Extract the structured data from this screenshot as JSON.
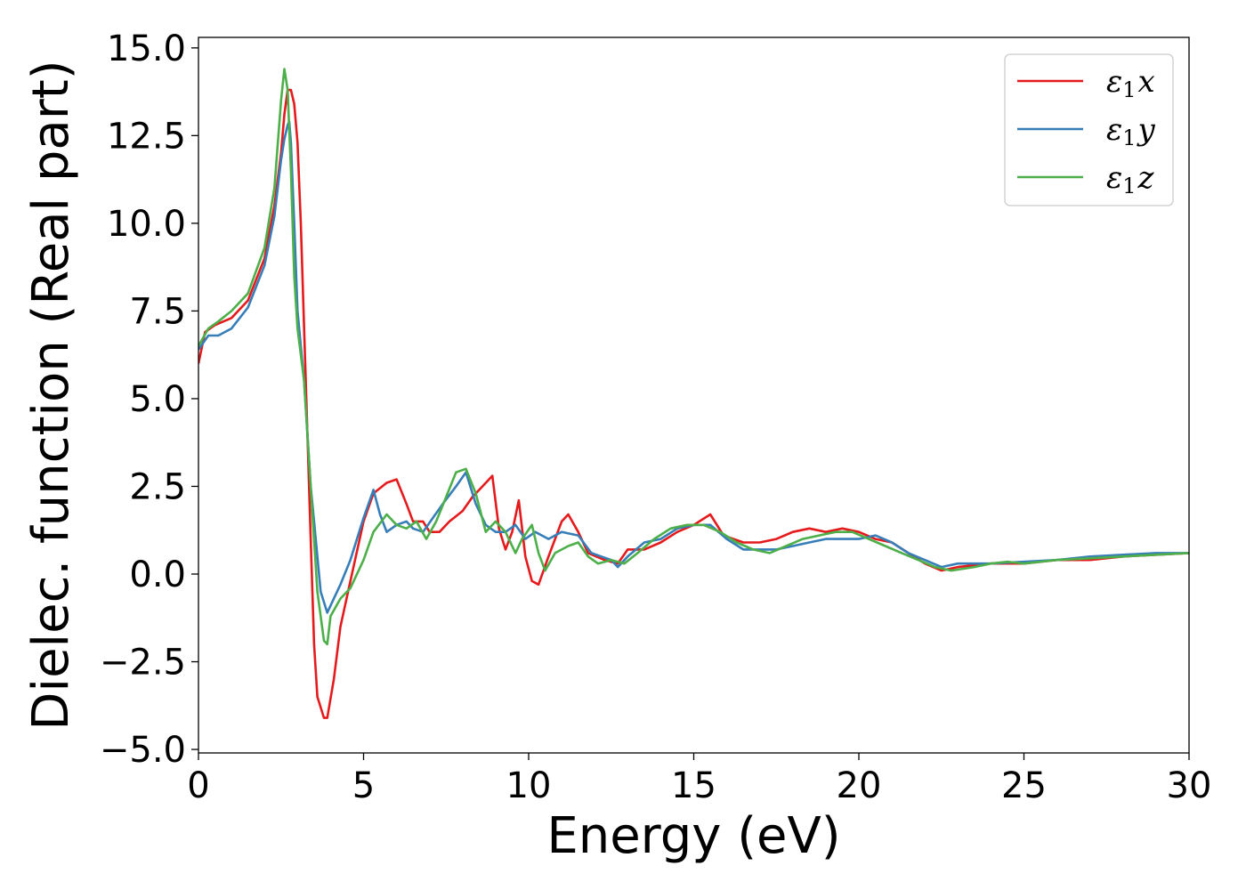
{
  "chart_data": {
    "type": "line",
    "xlabel": "Energy (eV)",
    "ylabel": "Dielec. function (Real part)",
    "xlim": [
      0,
      30
    ],
    "ylim": [
      -5.1,
      15.3
    ],
    "xticks": [
      0,
      5,
      10,
      15,
      20,
      25,
      30
    ],
    "xtick_labels": [
      "0",
      "5",
      "10",
      "15",
      "20",
      "25",
      "30"
    ],
    "yticks": [
      -5.0,
      -2.5,
      0.0,
      2.5,
      5.0,
      7.5,
      10.0,
      12.5,
      15.0
    ],
    "ytick_labels": [
      "−5.0",
      "−2.5",
      "0.0",
      "2.5",
      "5.0",
      "7.5",
      "10.0",
      "12.5",
      "15.0"
    ],
    "grid": false,
    "legend_position": "top-right",
    "series": [
      {
        "name": "ε₁x",
        "legend_symbol": "ε",
        "legend_sub": "1",
        "legend_var": "x",
        "color": "#e41a1c",
        "points": [
          [
            0,
            6.0
          ],
          [
            0.2,
            6.9
          ],
          [
            0.5,
            7.1
          ],
          [
            1.0,
            7.3
          ],
          [
            1.5,
            7.8
          ],
          [
            2.0,
            9.0
          ],
          [
            2.3,
            10.5
          ],
          [
            2.5,
            12.0
          ],
          [
            2.6,
            13.1
          ],
          [
            2.7,
            13.8
          ],
          [
            2.8,
            13.8
          ],
          [
            2.9,
            13.4
          ],
          [
            3.0,
            12.3
          ],
          [
            3.1,
            10.0
          ],
          [
            3.2,
            7.0
          ],
          [
            3.3,
            4.0
          ],
          [
            3.4,
            1.0
          ],
          [
            3.5,
            -2.0
          ],
          [
            3.6,
            -3.5
          ],
          [
            3.8,
            -4.1
          ],
          [
            3.9,
            -4.1
          ],
          [
            4.1,
            -3.0
          ],
          [
            4.3,
            -1.5
          ],
          [
            4.6,
            -0.2
          ],
          [
            5.0,
            1.5
          ],
          [
            5.3,
            2.3
          ],
          [
            5.7,
            2.6
          ],
          [
            6.0,
            2.7
          ],
          [
            6.3,
            2.0
          ],
          [
            6.5,
            1.5
          ],
          [
            6.8,
            1.5
          ],
          [
            7.0,
            1.2
          ],
          [
            7.3,
            1.2
          ],
          [
            7.6,
            1.5
          ],
          [
            8.0,
            1.8
          ],
          [
            8.3,
            2.2
          ],
          [
            8.6,
            2.5
          ],
          [
            8.9,
            2.8
          ],
          [
            9.1,
            1.3
          ],
          [
            9.3,
            0.7
          ],
          [
            9.5,
            1.2
          ],
          [
            9.7,
            2.1
          ],
          [
            9.9,
            0.5
          ],
          [
            10.1,
            -0.2
          ],
          [
            10.3,
            -0.3
          ],
          [
            10.6,
            0.5
          ],
          [
            11.0,
            1.5
          ],
          [
            11.2,
            1.7
          ],
          [
            11.5,
            1.2
          ],
          [
            11.8,
            0.6
          ],
          [
            12.3,
            0.4
          ],
          [
            12.7,
            0.3
          ],
          [
            13.0,
            0.7
          ],
          [
            13.5,
            0.7
          ],
          [
            14.0,
            0.9
          ],
          [
            14.5,
            1.2
          ],
          [
            15.0,
            1.4
          ],
          [
            15.5,
            1.7
          ],
          [
            15.9,
            1.1
          ],
          [
            16.5,
            0.9
          ],
          [
            17.0,
            0.9
          ],
          [
            17.5,
            1.0
          ],
          [
            18.0,
            1.2
          ],
          [
            18.5,
            1.3
          ],
          [
            19.0,
            1.2
          ],
          [
            19.5,
            1.3
          ],
          [
            20.0,
            1.2
          ],
          [
            20.5,
            1.0
          ],
          [
            21.0,
            0.9
          ],
          [
            21.5,
            0.6
          ],
          [
            22.0,
            0.3
          ],
          [
            22.5,
            0.1
          ],
          [
            23.0,
            0.2
          ],
          [
            24.0,
            0.3
          ],
          [
            25.0,
            0.3
          ],
          [
            26.0,
            0.4
          ],
          [
            27.0,
            0.4
          ],
          [
            28.0,
            0.5
          ],
          [
            29.0,
            0.55
          ],
          [
            30.0,
            0.6
          ]
        ]
      },
      {
        "name": "ε₁y",
        "legend_symbol": "ε",
        "legend_sub": "1",
        "legend_var": "y",
        "color": "#377eb8",
        "points": [
          [
            0,
            6.4
          ],
          [
            0.3,
            6.8
          ],
          [
            0.6,
            6.8
          ],
          [
            1.0,
            7.0
          ],
          [
            1.5,
            7.6
          ],
          [
            2.0,
            8.8
          ],
          [
            2.3,
            10.2
          ],
          [
            2.5,
            11.8
          ],
          [
            2.6,
            12.4
          ],
          [
            2.7,
            12.8
          ],
          [
            2.75,
            12.9
          ],
          [
            2.8,
            12.3
          ],
          [
            2.9,
            10.0
          ],
          [
            3.0,
            7.5
          ],
          [
            3.2,
            5.5
          ],
          [
            3.4,
            2.5
          ],
          [
            3.5,
            1.5
          ],
          [
            3.7,
            -0.5
          ],
          [
            3.9,
            -1.1
          ],
          [
            4.1,
            -0.7
          ],
          [
            4.3,
            -0.3
          ],
          [
            4.6,
            0.4
          ],
          [
            5.0,
            1.6
          ],
          [
            5.3,
            2.4
          ],
          [
            5.5,
            1.7
          ],
          [
            5.7,
            1.2
          ],
          [
            6.0,
            1.4
          ],
          [
            6.3,
            1.5
          ],
          [
            6.5,
            1.3
          ],
          [
            6.8,
            1.2
          ],
          [
            7.1,
            1.6
          ],
          [
            7.4,
            2.0
          ],
          [
            7.8,
            2.5
          ],
          [
            8.1,
            2.9
          ],
          [
            8.4,
            2.0
          ],
          [
            8.7,
            1.4
          ],
          [
            9.0,
            1.2
          ],
          [
            9.3,
            1.2
          ],
          [
            9.6,
            1.4
          ],
          [
            9.9,
            1.0
          ],
          [
            10.2,
            1.2
          ],
          [
            10.6,
            1.0
          ],
          [
            11.0,
            1.2
          ],
          [
            11.5,
            1.1
          ],
          [
            11.9,
            0.6
          ],
          [
            12.2,
            0.5
          ],
          [
            12.5,
            0.4
          ],
          [
            12.7,
            0.2
          ],
          [
            13.0,
            0.5
          ],
          [
            13.5,
            0.9
          ],
          [
            14.0,
            1.0
          ],
          [
            14.5,
            1.3
          ],
          [
            15.0,
            1.4
          ],
          [
            15.5,
            1.4
          ],
          [
            16.0,
            1.0
          ],
          [
            16.5,
            0.7
          ],
          [
            17.0,
            0.7
          ],
          [
            17.5,
            0.7
          ],
          [
            18.0,
            0.8
          ],
          [
            18.5,
            0.9
          ],
          [
            19.0,
            1.0
          ],
          [
            19.5,
            1.0
          ],
          [
            20.0,
            1.0
          ],
          [
            20.5,
            1.1
          ],
          [
            21.0,
            0.9
          ],
          [
            21.5,
            0.6
          ],
          [
            22.0,
            0.4
          ],
          [
            22.5,
            0.2
          ],
          [
            23.0,
            0.3
          ],
          [
            24.0,
            0.3
          ],
          [
            25.0,
            0.35
          ],
          [
            26.0,
            0.4
          ],
          [
            27.0,
            0.5
          ],
          [
            28.0,
            0.55
          ],
          [
            29.0,
            0.6
          ],
          [
            30.0,
            0.6
          ]
        ]
      },
      {
        "name": "ε₁z",
        "legend_symbol": "ε",
        "legend_sub": "1",
        "legend_var": "z",
        "color": "#4daf4a",
        "points": [
          [
            0,
            6.5
          ],
          [
            0.3,
            7.0
          ],
          [
            0.6,
            7.2
          ],
          [
            1.0,
            7.5
          ],
          [
            1.5,
            8.0
          ],
          [
            2.0,
            9.3
          ],
          [
            2.3,
            11.0
          ],
          [
            2.5,
            13.5
          ],
          [
            2.6,
            14.4
          ],
          [
            2.7,
            13.8
          ],
          [
            2.8,
            11.5
          ],
          [
            2.9,
            8.5
          ],
          [
            3.0,
            7.0
          ],
          [
            3.2,
            5.5
          ],
          [
            3.4,
            2.5
          ],
          [
            3.6,
            -0.5
          ],
          [
            3.8,
            -1.9
          ],
          [
            3.9,
            -2.0
          ],
          [
            4.0,
            -1.2
          ],
          [
            4.3,
            -0.7
          ],
          [
            4.6,
            -0.4
          ],
          [
            5.0,
            0.4
          ],
          [
            5.3,
            1.2
          ],
          [
            5.7,
            1.7
          ],
          [
            6.0,
            1.4
          ],
          [
            6.3,
            1.3
          ],
          [
            6.6,
            1.5
          ],
          [
            6.9,
            1.0
          ],
          [
            7.2,
            1.5
          ],
          [
            7.5,
            2.2
          ],
          [
            7.8,
            2.9
          ],
          [
            8.1,
            3.0
          ],
          [
            8.4,
            2.3
          ],
          [
            8.7,
            1.2
          ],
          [
            9.0,
            1.5
          ],
          [
            9.3,
            1.2
          ],
          [
            9.6,
            0.6
          ],
          [
            9.8,
            1.0
          ],
          [
            10.1,
            1.4
          ],
          [
            10.3,
            0.6
          ],
          [
            10.5,
            0.1
          ],
          [
            10.8,
            0.6
          ],
          [
            11.2,
            0.8
          ],
          [
            11.5,
            0.9
          ],
          [
            11.8,
            0.5
          ],
          [
            12.1,
            0.3
          ],
          [
            12.5,
            0.4
          ],
          [
            12.9,
            0.3
          ],
          [
            13.3,
            0.6
          ],
          [
            13.8,
            1.0
          ],
          [
            14.3,
            1.3
          ],
          [
            14.8,
            1.4
          ],
          [
            15.3,
            1.4
          ],
          [
            15.8,
            1.2
          ],
          [
            16.3,
            0.9
          ],
          [
            16.8,
            0.7
          ],
          [
            17.3,
            0.6
          ],
          [
            17.8,
            0.8
          ],
          [
            18.3,
            1.0
          ],
          [
            18.8,
            1.1
          ],
          [
            19.3,
            1.2
          ],
          [
            19.8,
            1.2
          ],
          [
            20.3,
            1.0
          ],
          [
            20.8,
            0.8
          ],
          [
            21.3,
            0.6
          ],
          [
            21.8,
            0.4
          ],
          [
            22.3,
            0.2
          ],
          [
            22.8,
            0.1
          ],
          [
            23.5,
            0.2
          ],
          [
            24.0,
            0.3
          ],
          [
            24.5,
            0.35
          ],
          [
            25.0,
            0.3
          ],
          [
            26.0,
            0.4
          ],
          [
            27.0,
            0.45
          ],
          [
            28.0,
            0.5
          ],
          [
            29.0,
            0.55
          ],
          [
            30.0,
            0.6
          ]
        ]
      }
    ]
  }
}
